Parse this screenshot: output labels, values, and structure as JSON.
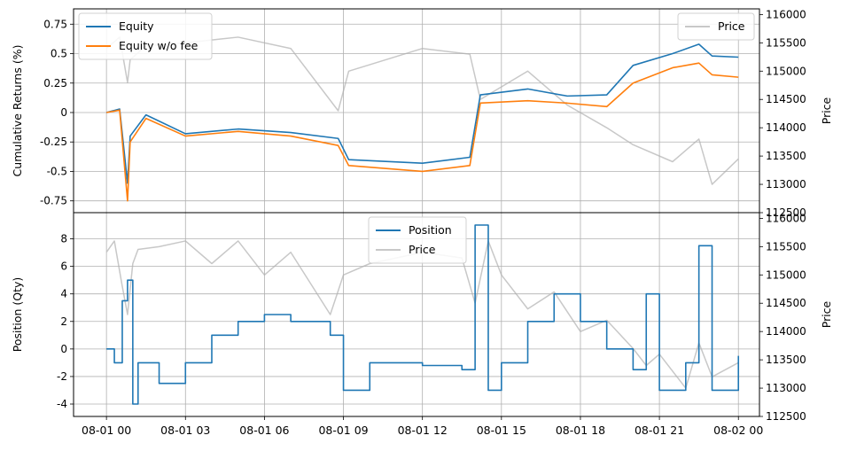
{
  "colors": {
    "equity": "#1f77b4",
    "equity_nofee": "#ff7f0e",
    "price": "#c8c8c8",
    "grid": "#b0b0b0"
  },
  "chart_data": [
    {
      "type": "line",
      "name": "top-panel",
      "grid": true,
      "ylabel": "Cumulative Returns (%)",
      "ylabel_right": "Price",
      "ylim": [
        -0.85,
        0.88
      ],
      "yticks": [
        -0.75,
        -0.5,
        -0.25,
        0.0,
        0.25,
        0.5,
        0.75
      ],
      "ylim_right": [
        112500,
        116100
      ],
      "yticks_right": [
        112500,
        113000,
        113500,
        114000,
        114500,
        115000,
        115500,
        116000
      ],
      "legend_left": [
        "Equity",
        "Equity w/o fee"
      ],
      "legend_left_loc": "top-left",
      "legend_right": [
        "Price"
      ],
      "legend_right_loc": "top-right",
      "x_hours": [
        0,
        0.5,
        0.8,
        0.9,
        1.5,
        3,
        5,
        7,
        8.8,
        9.2,
        12,
        13.8,
        14.2,
        16,
        17.5,
        19,
        20,
        21.5,
        22.5,
        23,
        24
      ],
      "series": [
        {
          "name": "Equity",
          "values": [
            0.0,
            0.03,
            -0.6,
            -0.2,
            -0.02,
            -0.18,
            -0.14,
            -0.17,
            -0.22,
            -0.4,
            -0.43,
            -0.38,
            0.15,
            0.2,
            0.14,
            0.15,
            0.4,
            0.5,
            0.58,
            0.48,
            0.47
          ]
        },
        {
          "name": "Equity w/o fee",
          "values": [
            0.0,
            0.02,
            -0.75,
            -0.25,
            -0.05,
            -0.2,
            -0.16,
            -0.2,
            -0.28,
            -0.45,
            -0.5,
            -0.45,
            0.08,
            0.1,
            0.08,
            0.05,
            0.25,
            0.38,
            0.42,
            0.32,
            0.3
          ]
        },
        {
          "name": "Price",
          "values": [
            115400,
            115600,
            114800,
            115200,
            115450,
            115500,
            115600,
            115400,
            114300,
            115000,
            115400,
            115300,
            114500,
            115000,
            114400,
            114000,
            113700,
            113400,
            113800,
            113000,
            113450
          ]
        }
      ]
    },
    {
      "type": "line",
      "name": "bottom-panel",
      "grid": true,
      "ylabel": "Position (Qty)",
      "ylabel_right": "Price",
      "ylim": [
        -4.9,
        9.9
      ],
      "yticks": [
        -4,
        -2,
        0,
        2,
        4,
        6,
        8
      ],
      "ylim_right": [
        112500,
        116100
      ],
      "yticks_right": [
        112500,
        113000,
        113500,
        114000,
        114500,
        115000,
        115500,
        116000
      ],
      "legend": [
        "Position",
        "Price"
      ],
      "legend_loc": "top-center",
      "x_hours": [
        0,
        0.3,
        0.6,
        0.8,
        1.0,
        1.2,
        2,
        3,
        4,
        5,
        6,
        7,
        8.5,
        9,
        10,
        12,
        13.5,
        14,
        14.5,
        15,
        16,
        17,
        18,
        19,
        20,
        20.5,
        21,
        22,
        22.5,
        23,
        24
      ],
      "series": [
        {
          "name": "Position",
          "values": [
            0,
            -1,
            3.5,
            5,
            -4,
            -1,
            -2.5,
            -1,
            1,
            2,
            2.5,
            2,
            1,
            -3,
            -1,
            -1.2,
            -1.5,
            9,
            -3,
            -1,
            2,
            4,
            2,
            0,
            -1.5,
            4,
            -3,
            -1,
            7.5,
            -3,
            -0.5
          ]
        },
        {
          "name": "Price",
          "values": [
            115400,
            115600,
            114800,
            114300,
            115200,
            115450,
            115500,
            115600,
            115200,
            115600,
            115000,
            115400,
            114300,
            115000,
            115200,
            115400,
            115300,
            114500,
            115600,
            115000,
            114400,
            114700,
            114000,
            114200,
            113700,
            113400,
            113600,
            113000,
            113800,
            113200,
            113450
          ]
        }
      ]
    }
  ],
  "x_axis": {
    "xlim_hours": [
      -1.25,
      24.8
    ],
    "ticks_hours": [
      0,
      3,
      6,
      9,
      12,
      15,
      18,
      21,
      24
    ],
    "tick_labels": [
      "08-01 00",
      "08-01 03",
      "08-01 06",
      "08-01 09",
      "08-01 12",
      "08-01 15",
      "08-01 18",
      "08-01 21",
      "08-02 00"
    ]
  }
}
